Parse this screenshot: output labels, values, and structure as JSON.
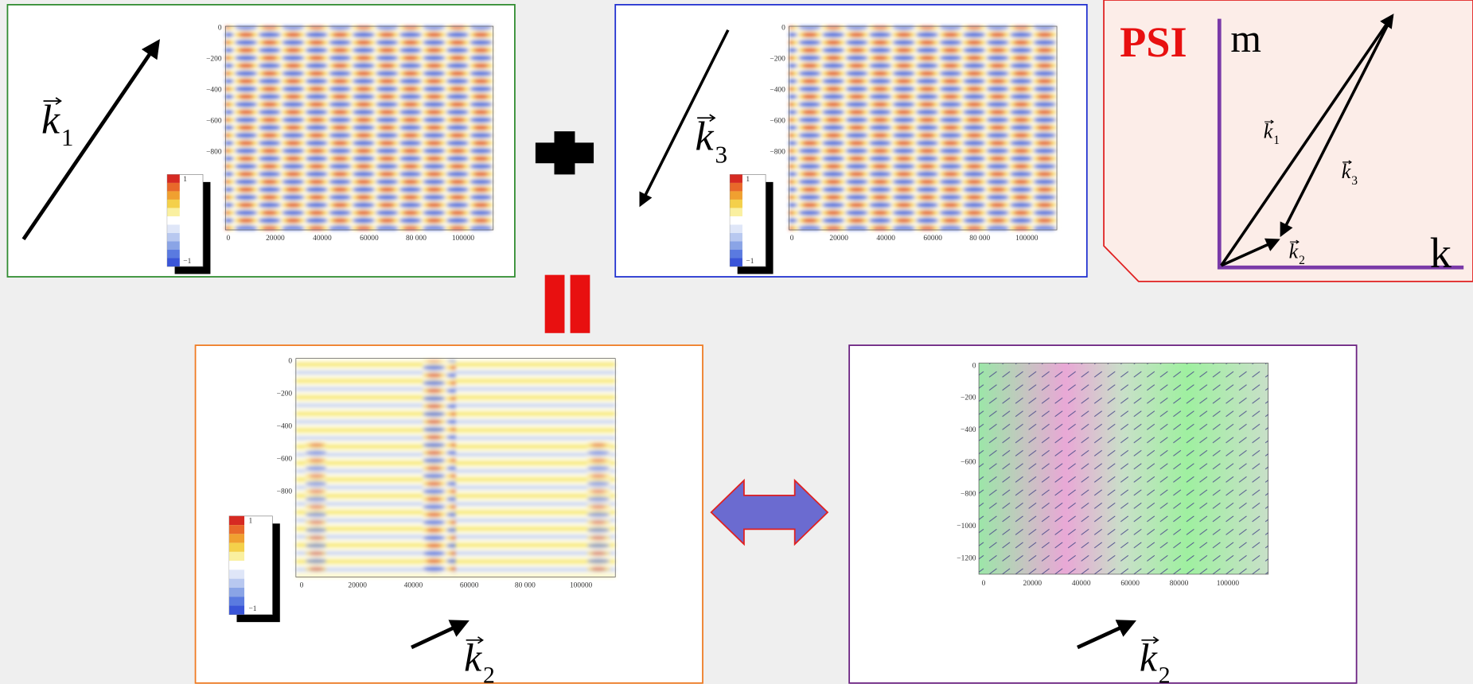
{
  "top_left_panel": {
    "vector": {
      "symbol": "k",
      "index": "1"
    },
    "plot": {
      "y_tick_labels": [
        "0",
        "−200",
        "−400",
        "−600",
        "−800"
      ],
      "x_tick_labels": [
        "0",
        "20000",
        "40000",
        "60000",
        "80 000",
        "100000"
      ],
      "colorbar_labels": [
        "1",
        "−1"
      ]
    }
  },
  "top_right_panel": {
    "vector": {
      "symbol": "k",
      "index": "3"
    },
    "plot": {
      "y_tick_labels": [
        "0",
        "−200",
        "−400",
        "−600",
        "−800"
      ],
      "x_tick_labels": [
        "0",
        "20000",
        "40000",
        "60000",
        "80 000",
        "100000"
      ],
      "colorbar_labels": [
        "1",
        "−1"
      ]
    }
  },
  "psi_panel": {
    "title": "PSI",
    "vertical_axis": "m",
    "horizontal_axis": "k",
    "vectors": [
      {
        "symbol": "k",
        "index": "1"
      },
      {
        "symbol": "k",
        "index": "3"
      },
      {
        "symbol": "k",
        "index": "2"
      }
    ]
  },
  "bottom_left_panel": {
    "vector": {
      "symbol": "k",
      "index": "2"
    },
    "plot": {
      "y_tick_labels": [
        "0",
        "−200",
        "−400",
        "−600",
        "−800"
      ],
      "x_tick_labels": [
        "0",
        "20000",
        "40000",
        "60000",
        "80 000",
        "100000"
      ],
      "colorbar_labels": [
        "1",
        "−1"
      ]
    }
  },
  "bottom_right_panel": {
    "vector": {
      "symbol": "k",
      "index": "2"
    },
    "plot": {
      "y_tick_labels": [
        "0",
        "−200",
        "−400",
        "−600",
        "−800",
        "−1000",
        "−1200"
      ],
      "x_tick_labels": [
        "0",
        "20000",
        "40000",
        "60000",
        "80000",
        "100000"
      ]
    }
  }
}
